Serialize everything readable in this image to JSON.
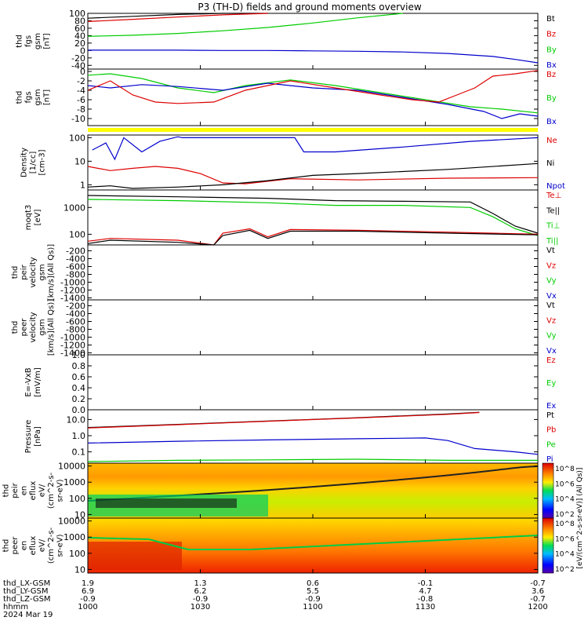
{
  "title": "P3 (TH-D) fields and ground moments overview",
  "colors": {
    "black": "#000000",
    "red": "#dd0000",
    "green": "#00cc00",
    "blue": "#0000cc",
    "yellow": "#ffff00"
  },
  "chart_data": {
    "type": "line",
    "time_axis": {
      "labels": [
        "1000",
        "1030",
        "1100",
        "1130",
        "1200"
      ],
      "date": "2024 Mar 19",
      "rows": [
        {
          "name": "thd_LX-GSM",
          "values": [
            "1.9",
            "1.3",
            "0.6",
            "-0.1",
            "-0.7"
          ]
        },
        {
          "name": "thd_LY-GSM",
          "values": [
            "6.9",
            "6.2",
            "5.5",
            "4.7",
            "3.6"
          ]
        },
        {
          "name": "thd_LZ-GSM",
          "values": [
            "-0.9",
            "-0.9",
            "-0.9",
            "-0.8",
            "-0.7"
          ]
        },
        {
          "name": "hhmm",
          "values": [
            "1000",
            "1030",
            "1100",
            "1130",
            "1200"
          ]
        }
      ]
    },
    "panels": [
      {
        "id": "fgs",
        "ylabel": [
          "thd",
          "fgs",
          "gsm",
          "[nT]"
        ],
        "ylim": [
          -50,
          100
        ],
        "yticks": [
          "100",
          "80",
          "60",
          "40",
          "20",
          "0",
          "-20",
          "-40"
        ],
        "legend": [
          {
            "name": "Bt",
            "color": "#000000"
          },
          {
            "name": "Bz",
            "color": "#dd0000"
          },
          {
            "name": "By",
            "color": "#00cc00"
          },
          {
            "name": "Bx",
            "color": "#0000cc"
          }
        ]
      },
      {
        "id": "fgs_detail",
        "ylabel": [
          "thd",
          "fgs",
          "gsm",
          "[nT]"
        ],
        "ylim": [
          -11.5,
          0.5
        ],
        "yticks": [
          "0",
          "-2",
          "-4",
          "-6",
          "-8",
          "-10"
        ],
        "legend": [
          {
            "name": "Bz",
            "color": "#dd0000"
          },
          {
            "name": "By",
            "color": "#00cc00"
          },
          {
            "name": "Bx",
            "color": "#0000cc"
          }
        ]
      },
      {
        "id": "density",
        "ylabel": [
          "Density",
          "[1/cc]",
          "[cm-3]"
        ],
        "scale": "log",
        "ylim": [
          0.6,
          100
        ],
        "yticks": [
          "100",
          "10",
          "1"
        ],
        "legend": [
          {
            "name": "Ne",
            "color": "#dd0000"
          },
          {
            "name": "Ni",
            "color": "#000000"
          },
          {
            "name": "Npot",
            "color": "#0000cc"
          }
        ]
      },
      {
        "id": "temperature",
        "ylabel": [
          "moqt3",
          "[eV]"
        ],
        "scale": "log",
        "yticks": [
          "1000",
          "100"
        ],
        "legend": [
          {
            "name": "Te⊥",
            "color": "#dd0000"
          },
          {
            "name": "Te||",
            "color": "#000000"
          },
          {
            "name": "Ti⊥",
            "color": "#00cc00"
          },
          {
            "name": "Ti||",
            "color": "#00cc00"
          }
        ]
      },
      {
        "id": "ion_velocity",
        "ylabel": [
          "thd",
          "peir",
          "velocity",
          "gsm",
          "[km/s](All Qs)]"
        ],
        "ylim": [
          -1450,
          -50
        ],
        "yticks": [
          "-200",
          "-400",
          "-600",
          "-800",
          "-1000",
          "-1200",
          "-1400"
        ],
        "legend": [
          {
            "name": "Vt",
            "color": "#000000"
          },
          {
            "name": "Vz",
            "color": "#dd0000"
          },
          {
            "name": "Vy",
            "color": "#00cc00"
          },
          {
            "name": "Vx",
            "color": "#0000cc"
          }
        ]
      },
      {
        "id": "electron_velocity",
        "ylabel": [
          "thd",
          "peer",
          "velocity",
          "gsm",
          "[km/s](All Qs)]"
        ],
        "ylim": [
          -1450,
          -50
        ],
        "yticks": [
          "-200",
          "-400",
          "-600",
          "-800",
          "-1000",
          "-1200",
          "-1400"
        ],
        "legend": [
          {
            "name": "Vt",
            "color": "#000000"
          },
          {
            "name": "Vz",
            "color": "#dd0000"
          },
          {
            "name": "Vy",
            "color": "#00cc00"
          },
          {
            "name": "Vx",
            "color": "#0000cc"
          }
        ]
      },
      {
        "id": "efield",
        "ylabel": [
          "E=-VxB",
          "[mV/m]"
        ],
        "ylim": [
          0,
          1
        ],
        "yticks": [
          "1.0",
          "0.8",
          "0.6",
          "0.4",
          "0.2",
          "0.0"
        ],
        "legend": [
          {
            "name": "Ez",
            "color": "#dd0000"
          },
          {
            "name": "Ey",
            "color": "#00cc00"
          },
          {
            "name": "Ex",
            "color": "#0000cc"
          }
        ]
      },
      {
        "id": "pressure",
        "ylabel": [
          "Pressure",
          "[nPa]"
        ],
        "scale": "log",
        "yticks": [
          "10.0",
          "1.0",
          "0.1"
        ],
        "legend": [
          {
            "name": "Pt",
            "color": "#000000"
          },
          {
            "name": "Pb",
            "color": "#dd0000"
          },
          {
            "name": "Pe",
            "color": "#00cc00"
          },
          {
            "name": "Pi",
            "color": "#0000cc"
          }
        ]
      },
      {
        "id": "ion_spectrogram",
        "type": "heatmap",
        "ylabel": [
          "thd",
          "peir",
          "en",
          "eflux",
          "eV/",
          "(cm^2-s-",
          "sr-eV)"
        ],
        "scale": "log",
        "yticks": [
          "10000",
          "1000",
          "100",
          "10"
        ],
        "colorbar": {
          "ticks": [
            "10^8",
            "10^6",
            "10^4",
            "10^2"
          ],
          "label": "[eV/(cm^2-s-sr-eV)] (All Qs)]"
        }
      },
      {
        "id": "electron_spectrogram",
        "type": "heatmap",
        "ylabel": [
          "thd",
          "peer",
          "en",
          "eflux",
          "eV/",
          "(cm^2-s-",
          "sr-eV)"
        ],
        "scale": "log",
        "yticks": [
          "10000",
          "1000",
          "100",
          "10"
        ],
        "colorbar": {
          "ticks": [
            "10^8",
            "10^6",
            "10^4",
            "10^2"
          ],
          "label": "[eV/(cm^2-s-sr-eV)] (All Qs)]"
        }
      }
    ],
    "series": [
      {
        "panel": "fgs",
        "name": "Bt",
        "color": "#000000",
        "x": [
          0,
          0.1,
          0.2,
          0.3,
          0.4
        ],
        "y": [
          87,
          92,
          97,
          100,
          105
        ]
      },
      {
        "panel": "fgs",
        "name": "Bz",
        "color": "#dd0000",
        "x": [
          0,
          0.1,
          0.2,
          0.3,
          0.4
        ],
        "y": [
          78,
          84,
          90,
          96,
          102
        ]
      },
      {
        "panel": "fgs",
        "name": "By",
        "color": "#00cc00",
        "x": [
          0,
          0.1,
          0.2,
          0.3,
          0.4,
          0.5,
          0.6,
          0.7
        ],
        "y": [
          38,
          41,
          46,
          53,
          62,
          74,
          88,
          100
        ]
      },
      {
        "panel": "fgs",
        "name": "Bx",
        "color": "#0000cc",
        "x": [
          0,
          0.1,
          0.2,
          0.3,
          0.4,
          0.5,
          0.6,
          0.7,
          0.8,
          0.9,
          0.95,
          1
        ],
        "y": [
          1,
          1,
          1,
          0,
          0,
          -1,
          -2,
          -4,
          -8,
          -16,
          -24,
          -33
        ]
      },
      {
        "panel": "fgs_detail",
        "name": "By",
        "color": "#00cc00",
        "x": [
          0,
          0.05,
          0.12,
          0.2,
          0.28,
          0.35,
          0.45,
          0.55,
          0.65,
          0.75,
          0.85,
          0.92,
          1
        ],
        "y": [
          -0.8,
          -0.5,
          -1.5,
          -3.5,
          -4.5,
          -3.0,
          -1.8,
          -3.0,
          -4.5,
          -6.0,
          -7.5,
          -8.0,
          -8.8
        ]
      },
      {
        "panel": "fgs_detail",
        "name": "Bx",
        "color": "#0000cc",
        "x": [
          0,
          0.05,
          0.12,
          0.2,
          0.3,
          0.4,
          0.5,
          0.6,
          0.7,
          0.8,
          0.88,
          0.92,
          0.96,
          1
        ],
        "y": [
          -3.0,
          -3.5,
          -2.8,
          -3.2,
          -4.0,
          -2.5,
          -3.5,
          -4.0,
          -5.5,
          -7.0,
          -8.5,
          -10.0,
          -9.0,
          -9.5
        ]
      },
      {
        "panel": "fgs_detail",
        "name": "Bz",
        "color": "#dd0000",
        "x": [
          0,
          0.05,
          0.1,
          0.15,
          0.2,
          0.28,
          0.35,
          0.45,
          0.55,
          0.65,
          0.72,
          0.78,
          0.82,
          0.86,
          0.9,
          0.95,
          1
        ],
        "y": [
          -4.0,
          -2.0,
          -5.0,
          -6.5,
          -6.8,
          -6.5,
          -4.0,
          -2.0,
          -3.5,
          -5.0,
          -6.0,
          -6.5,
          -5.0,
          -3.5,
          -1.0,
          -0.5,
          0.2
        ]
      },
      {
        "panel": "density",
        "name": "Npot",
        "color": "#0000cc",
        "x": [
          0.01,
          0.04,
          0.06,
          0.08,
          0.12,
          0.16,
          0.2,
          0.21,
          0.46,
          0.48,
          0.55,
          0.7,
          0.85,
          1
        ],
        "y": [
          30,
          60,
          12,
          100,
          25,
          70,
          110,
          100,
          100,
          25,
          25,
          40,
          70,
          100
        ]
      },
      {
        "panel": "density",
        "name": "Ne",
        "color": "#dd0000",
        "x": [
          0,
          0.05,
          0.1,
          0.15,
          0.2,
          0.25,
          0.3,
          0.35,
          0.45,
          0.6,
          0.8,
          1
        ],
        "y": [
          6,
          4,
          5,
          6,
          5,
          3,
          1.2,
          1.1,
          1.8,
          1.6,
          1.9,
          2.0
        ]
      },
      {
        "panel": "density",
        "name": "Ni",
        "color": "#000000",
        "x": [
          0,
          0.05,
          0.1,
          0.2,
          0.3,
          0.4,
          0.5,
          0.6,
          0.8,
          1
        ],
        "y": [
          0.8,
          0.9,
          0.7,
          0.8,
          1.0,
          1.5,
          2.5,
          3.0,
          4.5,
          8.0
        ]
      },
      {
        "panel": "temperature",
        "name": "Te||",
        "color": "#000000",
        "x": [
          0,
          0.2,
          0.4,
          0.55,
          0.7,
          0.85,
          0.9,
          0.95,
          1
        ],
        "y": [
          2800,
          2500,
          2200,
          1800,
          1700,
          1600,
          600,
          200,
          110
        ]
      },
      {
        "panel": "temperature",
        "name": "Ti||",
        "color": "#00cc00",
        "x": [
          0,
          0.2,
          0.4,
          0.55,
          0.7,
          0.85,
          0.9,
          0.95,
          1
        ],
        "y": [
          2000,
          1800,
          1500,
          1200,
          1200,
          1000,
          450,
          160,
          90
        ]
      },
      {
        "panel": "temperature",
        "name": "Te⊥",
        "color": "#dd0000",
        "x": [
          0,
          0.05,
          0.2,
          0.28,
          0.3,
          0.36,
          0.4,
          0.45,
          0.6,
          0.8,
          1
        ],
        "y": [
          55,
          70,
          60,
          40,
          110,
          160,
          80,
          150,
          140,
          120,
          100
        ]
      },
      {
        "panel": "temperature",
        "name": "Ti⊥",
        "color": "#000000",
        "x": [
          0,
          0.05,
          0.2,
          0.28,
          0.3,
          0.36,
          0.4,
          0.45,
          0.6,
          0.8,
          1
        ],
        "y": [
          45,
          60,
          50,
          35,
          90,
          140,
          70,
          130,
          130,
          110,
          95
        ]
      },
      {
        "panel": "pressure",
        "name": "Pt",
        "color": "#000000",
        "x": [
          0,
          0.2,
          0.4,
          0.6,
          0.8,
          0.87
        ],
        "y": [
          3.2,
          5.0,
          8.0,
          13.0,
          22,
          28
        ]
      },
      {
        "panel": "pressure",
        "name": "Pb",
        "color": "#dd0000",
        "x": [
          0,
          0.2,
          0.4,
          0.6,
          0.8,
          0.87
        ],
        "y": [
          3.0,
          4.8,
          7.8,
          12.5,
          21,
          27
        ]
      },
      {
        "panel": "pressure",
        "name": "Pe",
        "color": "#0000cc",
        "x": [
          0,
          0.2,
          0.4,
          0.6,
          0.75,
          0.8,
          0.86,
          0.95,
          1
        ],
        "y": [
          0.35,
          0.45,
          0.55,
          0.65,
          0.72,
          0.5,
          0.16,
          0.1,
          0.07
        ]
      },
      {
        "panel": "pressure",
        "name": "Pi",
        "color": "#00cc00",
        "x": [
          0,
          0.2,
          0.4,
          0.6,
          0.8,
          1
        ],
        "y": [
          0.025,
          0.03,
          0.032,
          0.035,
          0.03,
          0.03
        ]
      }
    ]
  }
}
